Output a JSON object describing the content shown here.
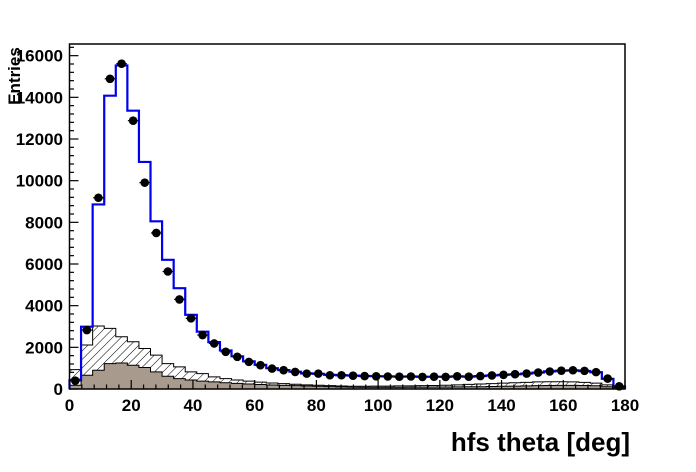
{
  "chart_data": {
    "type": "bar",
    "title": "",
    "xlabel": "hfs theta [deg]",
    "ylabel": "Entries",
    "xlim": [
      0,
      180
    ],
    "ylim": [
      0,
      16560
    ],
    "grid": false,
    "legend": "none",
    "bin_width": 3.75,
    "n_bins": 48,
    "x_ticks": [
      0,
      20,
      40,
      60,
      80,
      100,
      120,
      140,
      160,
      180
    ],
    "x_minor_step": 4,
    "y_ticks": [
      0,
      2000,
      4000,
      6000,
      8000,
      10000,
      12000,
      14000,
      16000
    ],
    "y_minor_step": 400,
    "colors": {
      "frame": "#000000",
      "mc_line": "#0000ee",
      "data_marker": "#000000",
      "hatched_fill_lines": "#000000",
      "gray_fill": "#a89a8c",
      "background": "#ffffff"
    },
    "series": [
      {
        "name": "data_points",
        "style": "black filled circles with horizontal bin-width bars",
        "values": [
          400,
          2830,
          9180,
          14890,
          15615,
          12880,
          9905,
          7490,
          5640,
          4300,
          3390,
          2590,
          2185,
          1785,
          1544,
          1302,
          1143,
          979,
          902,
          820,
          738,
          738,
          660,
          660,
          640,
          620,
          610,
          600,
          590,
          600,
          580,
          590,
          580,
          610,
          590,
          620,
          650,
          680,
          710,
          740,
          790,
          840,
          880,
          900,
          870,
          810,
          500,
          130
        ]
      },
      {
        "name": "total_histogram",
        "style": "blue step line",
        "values": [
          420,
          2990,
          8860,
          14080,
          15530,
          13360,
          10900,
          8050,
          6200,
          4840,
          3560,
          2750,
          2250,
          1850,
          1570,
          1330,
          1160,
          1000,
          910,
          830,
          750,
          730,
          680,
          660,
          645,
          625,
          615,
          605,
          595,
          600,
          585,
          590,
          585,
          605,
          595,
          620,
          650,
          680,
          705,
          740,
          790,
          845,
          880,
          895,
          865,
          805,
          490,
          125
        ]
      },
      {
        "name": "hatched_background",
        "style": "white fill with black diagonal hatching, black outline",
        "values": [
          930,
          2110,
          3025,
          2910,
          2510,
          2265,
          1945,
          1625,
          1220,
          1060,
          820,
          740,
          580,
          500,
          430,
          380,
          330,
          290,
          260,
          230,
          200,
          180,
          160,
          145,
          130,
          130,
          140,
          140,
          150,
          150,
          160,
          170,
          180,
          200,
          220,
          240,
          260,
          280,
          300,
          320,
          340,
          350,
          350,
          340,
          320,
          280,
          200,
          100
        ]
      },
      {
        "name": "gray_background",
        "style": "solid gray-brown fill, black outline",
        "values": [
          180,
          660,
          900,
          1220,
          1250,
          1140,
          1030,
          820,
          612,
          497,
          430,
          380,
          340,
          300,
          270,
          240,
          215,
          195,
          175,
          160,
          145,
          130,
          115,
          100,
          90,
          85,
          85,
          85,
          85,
          90,
          90,
          95,
          95,
          100,
          105,
          110,
          120,
          130,
          140,
          150,
          160,
          170,
          175,
          175,
          170,
          155,
          110,
          55
        ]
      }
    ]
  }
}
